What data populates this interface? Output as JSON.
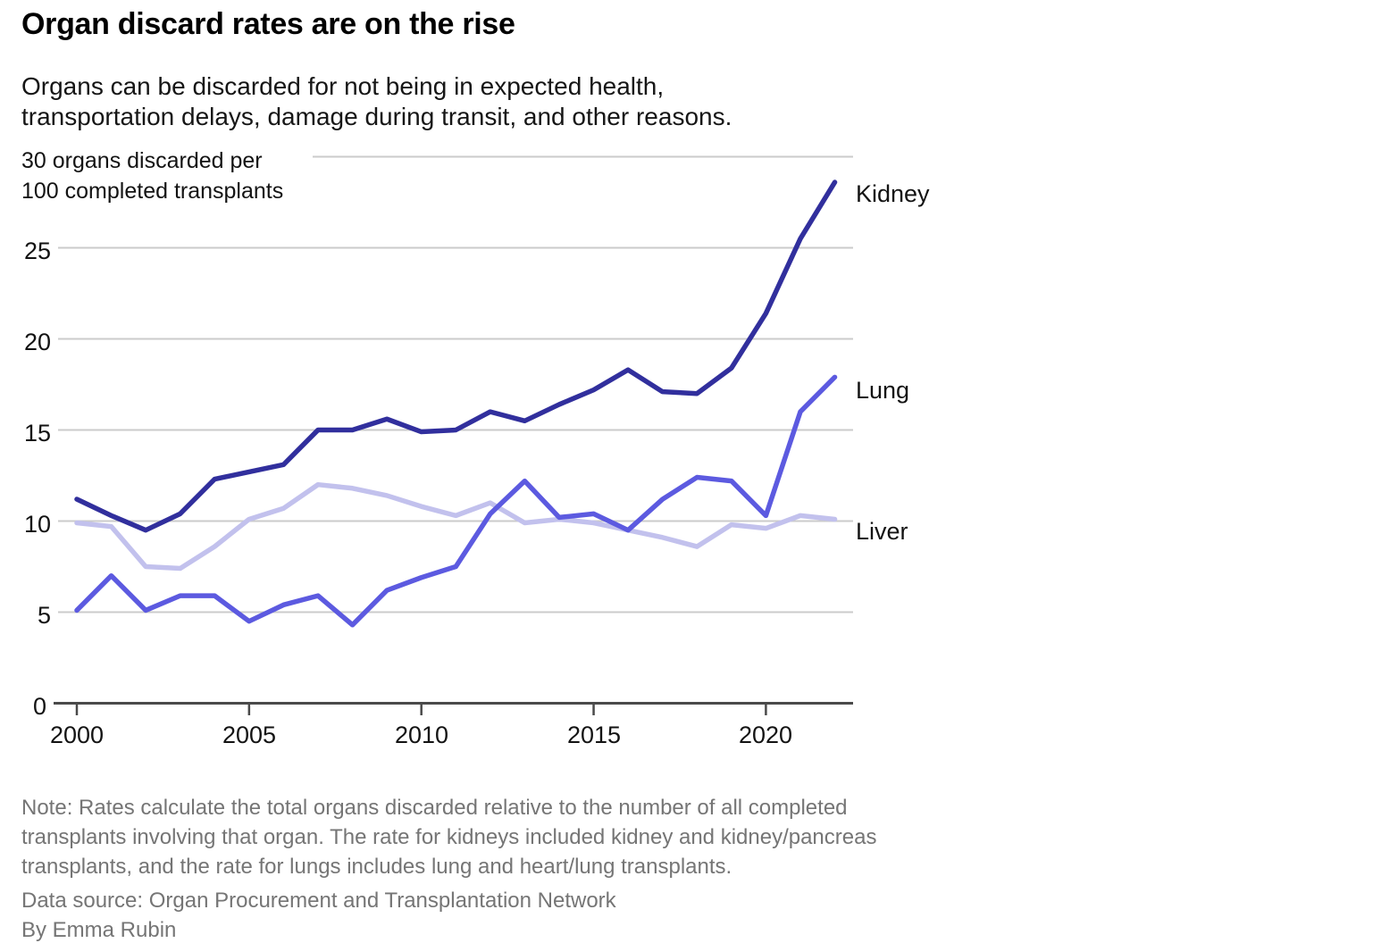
{
  "header": {
    "title": "Organ discard rates are on the rise",
    "subtitle_line1": "Organs can be discarded for not being in expected health,",
    "subtitle_line2": "transportation delays, damage during transit, and other reasons."
  },
  "chart_data": {
    "type": "line",
    "title": "Organ discard rates are on the rise",
    "y_axis_label_line1": "30 organs discarded per",
    "y_axis_label_line2": "100 completed transplants",
    "x": [
      2000,
      2001,
      2002,
      2003,
      2004,
      2005,
      2006,
      2007,
      2008,
      2009,
      2010,
      2011,
      2012,
      2013,
      2014,
      2015,
      2016,
      2017,
      2018,
      2019,
      2020,
      2021,
      2022
    ],
    "x_ticks": [
      2000,
      2005,
      2010,
      2015,
      2020
    ],
    "y_ticks": [
      0,
      5,
      10,
      15,
      20,
      25,
      30
    ],
    "ylim": [
      0,
      30
    ],
    "grid": true,
    "legend_position": "line-end-labels-right",
    "series": [
      {
        "name": "Kidney",
        "color": "#312f9d",
        "values": [
          11.2,
          10.3,
          9.5,
          10.4,
          12.3,
          12.7,
          13.1,
          15.0,
          15.0,
          15.6,
          14.9,
          15.0,
          16.0,
          15.5,
          16.4,
          17.2,
          18.3,
          17.1,
          17.0,
          18.4,
          21.4,
          25.5,
          28.6
        ]
      },
      {
        "name": "Lung",
        "color": "#5c5ae0",
        "values": [
          5.1,
          7.0,
          5.1,
          5.9,
          5.9,
          4.5,
          5.4,
          5.9,
          4.3,
          6.2,
          6.9,
          7.5,
          10.4,
          12.2,
          10.2,
          10.4,
          9.5,
          11.2,
          12.4,
          12.2,
          10.3,
          16.0,
          17.9
        ]
      },
      {
        "name": "Liver",
        "color": "#c2c1ed",
        "values": [
          9.9,
          9.7,
          7.5,
          7.4,
          8.6,
          10.1,
          10.7,
          12.0,
          11.8,
          11.4,
          10.8,
          10.3,
          11.0,
          9.9,
          10.1,
          9.9,
          9.5,
          9.1,
          8.6,
          9.8,
          9.6,
          10.3,
          10.1
        ]
      }
    ],
    "colors": {
      "gridline": "#cbcbcb",
      "axis": "#4a4a4a"
    }
  },
  "notes": {
    "line1": "Note: Rates calculate the total organs discarded relative to the number of all completed",
    "line2": "transplants involving that organ. The rate for kidneys included kidney and kidney/pancreas",
    "line3": "transplants, and the rate for lungs includes lung and heart/lung transplants.",
    "source": "Data source: Organ Procurement and Transplantation Network",
    "byline": "By Emma Rubin"
  }
}
